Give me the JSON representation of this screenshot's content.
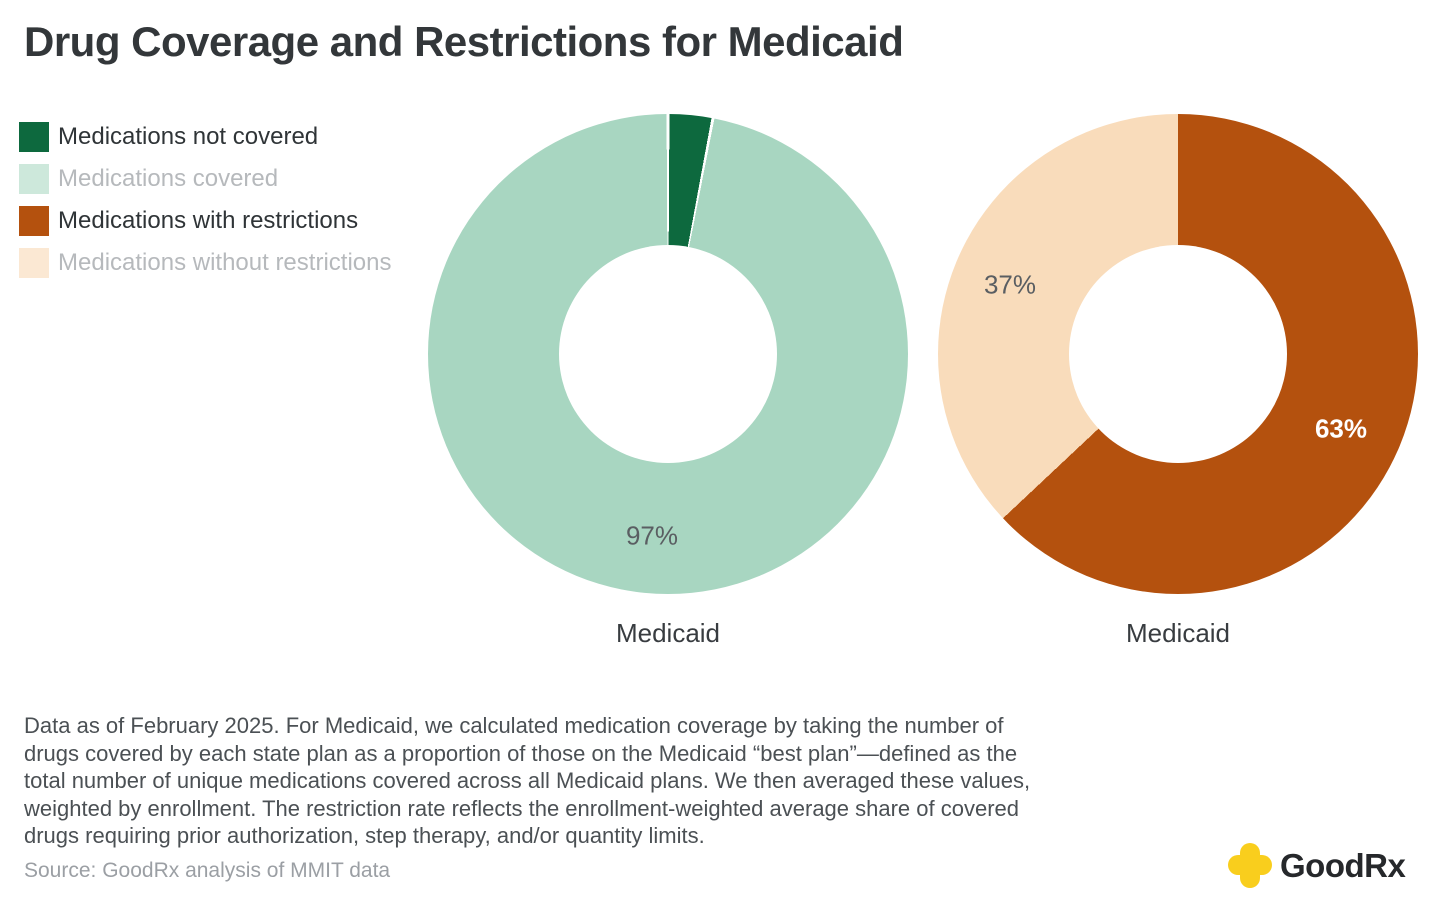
{
  "title": "Drug Coverage and Restrictions for Medicaid",
  "legend": {
    "items": [
      {
        "label": "Medications not covered",
        "color": "#0d693e",
        "dimmed": false
      },
      {
        "label": "Medications covered",
        "color": "#cde8db",
        "dimmed": true
      },
      {
        "label": "Medications with restrictions",
        "color": "#b4510e",
        "dimmed": false
      },
      {
        "label": "Medications without restrictions",
        "color": "#fbe8d3",
        "dimmed": true
      }
    ]
  },
  "chart_data": [
    {
      "type": "pie",
      "subtype": "donut",
      "category_label": "Medicaid",
      "inner_radius_pct": 45,
      "start_angle_deg": 0,
      "direction": "clockwise",
      "dividers": true,
      "slices": [
        {
          "label": "Medications not covered",
          "value": 3,
          "color": "#0d693e",
          "data_label": ""
        },
        {
          "label": "Medications covered",
          "value": 97,
          "color": "#a8d6c1",
          "data_label": "97%"
        }
      ]
    },
    {
      "type": "pie",
      "subtype": "donut",
      "category_label": "Medicaid",
      "inner_radius_pct": 45,
      "start_angle_deg": 0,
      "direction": "clockwise",
      "dividers": false,
      "slices": [
        {
          "label": "Medications with restrictions",
          "value": 63,
          "color": "#b4510e",
          "data_label": "63%"
        },
        {
          "label": "Medications without restrictions",
          "value": 37,
          "color": "#f9dcbb",
          "data_label": "37%"
        }
      ]
    }
  ],
  "footnote": "Data as of February 2025. For Medicaid, we calculated medication coverage by taking the number of\ndrugs covered by each state plan as a proportion of those on the Medicaid “best plan”—defined as the\ntotal number of unique medications covered across all Medicaid plans. We then averaged these values,\nweighted by enrollment. The restriction rate reflects the enrollment-weighted average share of covered\ndrugs requiring prior authorization, step therapy, and/or quantity limits.",
  "source": "Source: GoodRx analysis of MMIT data",
  "logo": {
    "text": "GoodRx",
    "icon_color": "#f9ce1d",
    "text_color": "#26282b"
  }
}
